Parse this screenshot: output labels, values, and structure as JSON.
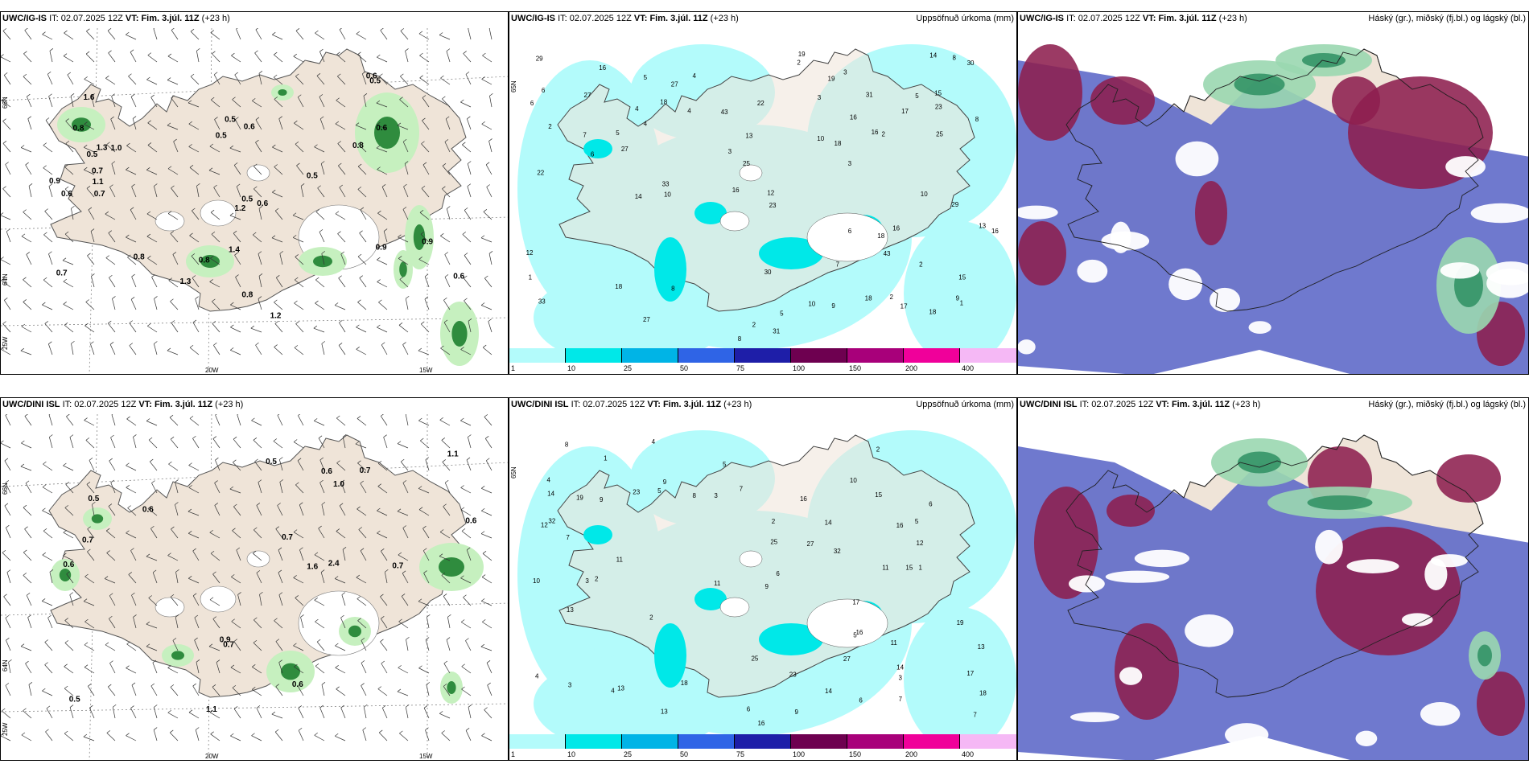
{
  "panels": [
    {
      "model": "UWC/IG-IS",
      "it_label": "IT:",
      "it": "02.07.2025 12Z",
      "vt_label": "VT:",
      "vt": "Fim. 3.júl. 11Z",
      "lead": "(+23 h)",
      "right": ""
    },
    {
      "model": "UWC/IG-IS",
      "it_label": "IT:",
      "it": "02.07.2025 12Z",
      "vt_label": "VT:",
      "vt": "Fim. 3.júl. 11Z",
      "lead": "(+23 h)",
      "right": "Uppsöfnuð úrkoma (mm)"
    },
    {
      "model": "UWC/IG-IS",
      "it_label": "IT:",
      "it": "02.07.2025 12Z",
      "vt_label": "VT:",
      "vt": "Fim. 3.júl. 11Z",
      "lead": "(+23 h)",
      "right": "Háský (gr.), miðský (fj.bl.) og lágský (bl.)"
    },
    {
      "model": "UWC/DINI ISL",
      "it_label": "IT:",
      "it": "02.07.2025 12Z",
      "vt_label": "VT:",
      "vt": "Fim. 3.júl. 11Z",
      "lead": "(+23 h)",
      "right": ""
    },
    {
      "model": "UWC/DINI ISL",
      "it_label": "IT:",
      "it": "02.07.2025 12Z",
      "vt_label": "VT:",
      "vt": "Fim. 3.júl. 11Z",
      "lead": "(+23 h)",
      "right": "Uppsöfnuð úrkoma (mm)"
    },
    {
      "model": "UWC/DINI ISL",
      "it_label": "IT:",
      "it": "02.07.2025 12Z",
      "vt_label": "VT:",
      "vt": "Fim. 3.júl. 11Z",
      "lead": "(+23 h)",
      "right": "Háský (gr.), miðský (fj.bl.) og lágský (bl.)"
    }
  ],
  "axis_labels": {
    "lon_20": "20W",
    "lon_15": "15W",
    "lon_25": "25W",
    "lat_66": "66N",
    "lat_64": "64N",
    "lat_65": "65N"
  },
  "colorbar": {
    "ticks": [
      "1",
      "10",
      "25",
      "50",
      "75",
      "100",
      "150",
      "200",
      "400"
    ],
    "colors": [
      "#b3fbfb",
      "#00e8e8",
      "#00b4e6",
      "#2f64e6",
      "#1e1ea8",
      "#6e0050",
      "#a8007a",
      "#f0009a",
      "#f5b8f5"
    ]
  },
  "precip_values_top": [
    "2",
    "4",
    "3",
    "2",
    "5",
    "8",
    "6",
    "10",
    "15",
    "16",
    "13",
    "18",
    "16",
    "18",
    "22",
    "27",
    "33",
    "43",
    "18",
    "10",
    "17",
    "29",
    "25",
    "30",
    "31",
    "27",
    "23",
    "19",
    "16",
    "14",
    "12",
    "9",
    "8",
    "7",
    "6",
    "5",
    "4",
    "3",
    "2",
    "1"
  ],
  "precip_values_bottom": [
    "2",
    "3",
    "4",
    "5",
    "6",
    "7",
    "9",
    "10",
    "11",
    "13",
    "14",
    "16",
    "17",
    "19",
    "18",
    "15",
    "13",
    "27",
    "23",
    "16",
    "14",
    "25",
    "32",
    "11",
    "12",
    "9",
    "8",
    "7",
    "6",
    "5",
    "4",
    "3",
    "2",
    "1"
  ],
  "wind_values_top": [
    "0.8",
    "0.6",
    "1.2",
    "0.5",
    "1.6",
    "1.0",
    "1.3",
    "0.7",
    "1.3",
    "0.5",
    "0.9",
    "0.8",
    "0.6",
    "0.6",
    "0.5",
    "0.8",
    "0.7",
    "0.5",
    "0.9",
    "0.8",
    "1.1",
    "0.6",
    "0.5",
    "0.9",
    "0.8",
    "0.6",
    "1.2",
    "0.7",
    "1.4",
    "0.5",
    "0.6"
  ],
  "wind_values_bottom": [
    "0.9",
    "0.5",
    "0.6",
    "1.1",
    "1.0",
    "0.5",
    "2.4",
    "0.7",
    "0.7",
    "1.6",
    "0.6",
    "1.1",
    "0.7",
    "0.5",
    "0.6",
    "0.7",
    "0.6",
    "0.6",
    "0.7"
  ],
  "colors": {
    "land": "#efe4d8",
    "wind_green_light": "#c6f0bf",
    "wind_green": "#7fd487",
    "wind_green_dark": "#2f8c3e",
    "precip_light": "#b3fbfb",
    "precip_mid": "#00e8e8",
    "cloud_high": "#5f6ac9",
    "cloud_mid": "#8d1f4f",
    "cloud_low": "#9ad7b0"
  }
}
